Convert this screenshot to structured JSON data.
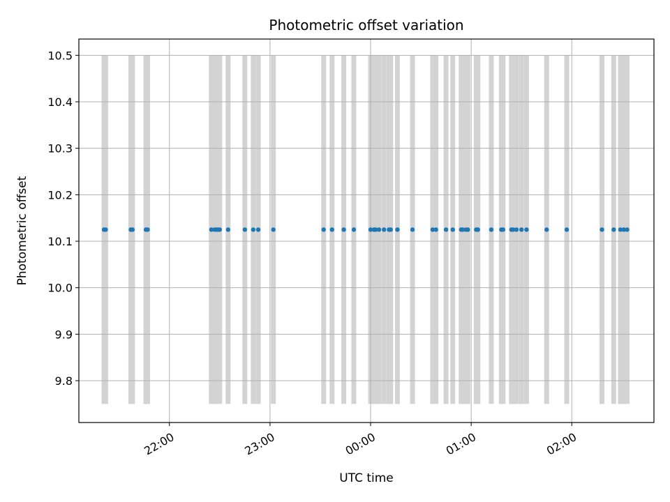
{
  "chart_data": {
    "type": "scatter",
    "title": "Photometric offset variation",
    "xlabel": "UTC time",
    "ylabel": "Photometric offset",
    "xlim": [
      "21:06",
      "02:49"
    ],
    "ylim": [
      9.71,
      10.535
    ],
    "x_ticks": [
      "22:00",
      "23:00",
      "00:00",
      "01:00",
      "02:00"
    ],
    "y_ticks": [
      9.8,
      9.9,
      10.0,
      10.1,
      10.2,
      10.3,
      10.4,
      10.5
    ],
    "grid": true,
    "legend": "none",
    "colors": {
      "points": "#1f77b4",
      "bands": "#d3d3d3",
      "grid": "#b0b0b0"
    },
    "band_range": [
      9.75,
      10.5
    ],
    "series": [
      {
        "value": 10.125,
        "x": [
          "21:21",
          "21:22",
          "21:37",
          "21:38",
          "21:46",
          "21:47",
          "22:25",
          "22:27",
          "22:28",
          "22:29",
          "22:30",
          "22:35",
          "22:45",
          "22:50",
          "22:53",
          "23:02",
          "23:32",
          "23:37",
          "23:44",
          "23:50",
          "00:00",
          "00:02",
          "00:03",
          "00:05",
          "00:08",
          "00:11",
          "00:12",
          "00:16",
          "00:25",
          "00:37",
          "00:39",
          "00:45",
          "00:49",
          "00:54",
          "00:55",
          "00:57",
          "00:58",
          "01:03",
          "01:04",
          "01:12",
          "01:18",
          "01:19",
          "01:24",
          "01:25",
          "01:27",
          "01:30",
          "01:33",
          "01:45",
          "01:57",
          "02:18",
          "02:25",
          "02:29",
          "02:31",
          "02:33"
        ]
      }
    ]
  }
}
